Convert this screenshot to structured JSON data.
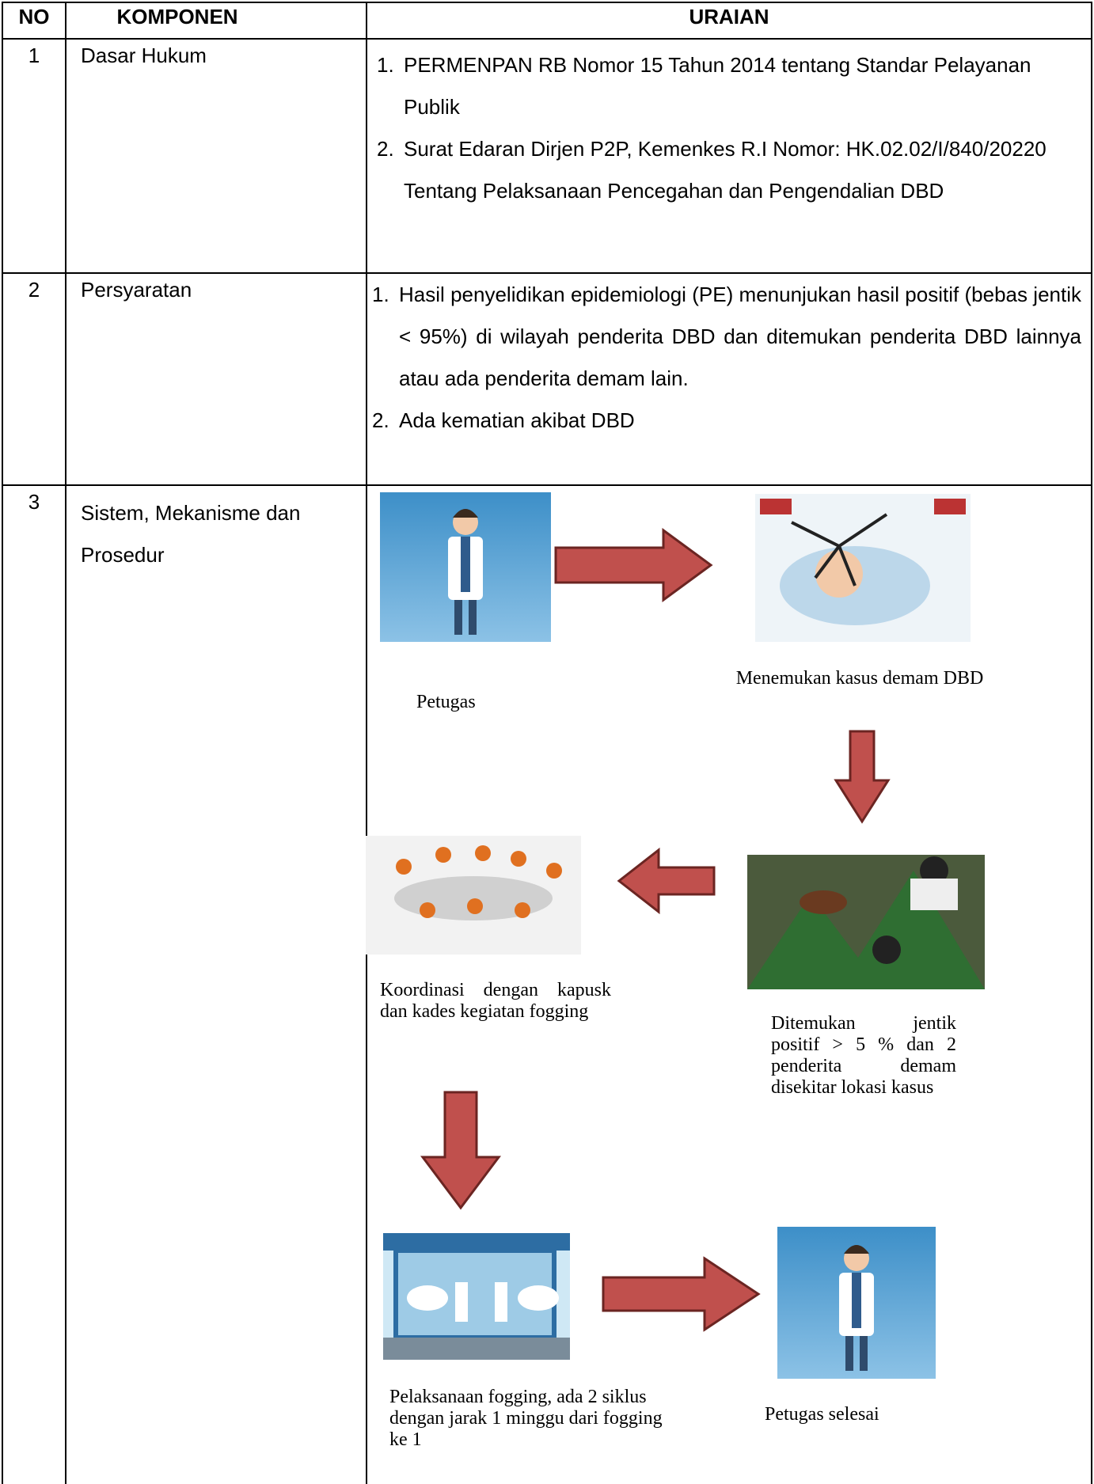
{
  "header": {
    "no": "NO",
    "komponen": "KOMPONEN",
    "uraian": "URAIAN"
  },
  "rows": [
    {
      "no": "1",
      "komponen": "Dasar Hukum",
      "uraian": [
        {
          "num": "1.",
          "text": "PERMENPAN RB Nomor 15 Tahun 2014 tentang Standar Pelayanan Publik"
        },
        {
          "num": "2.",
          "text": "Surat Edaran Dirjen P2P, Kemenkes R.I Nomor: HK.02.02/I/840/20220 Tentang Pelaksanaan Pencegahan dan Pengendalian DBD"
        }
      ]
    },
    {
      "no": "2",
      "komponen": "Persyaratan",
      "uraian": [
        {
          "num": "1.",
          "text": "Hasil penyelidikan epidemiologi (PE) menunjukan hasil positif (bebas jentik < 95%) di wilayah penderita DBD dan ditemukan penderita DBD lainnya atau ada penderita demam lain."
        },
        {
          "num": "2.",
          "text": "Ada kematian akibat DBD"
        }
      ]
    },
    {
      "no": "3",
      "komponen": "Sistem, Mekanisme dan Prosedur"
    }
  ],
  "flow": {
    "steps": [
      "Petugas",
      "Menemukan kasus demam DBD",
      "Ditemukan jentik positif > 5 % dan 2 penderita demam disekitar lokasi kasus",
      "Koordinasi dengan kapusk dan kades kegiatan fogging",
      "Pelaksanaan fogging, ada 2 siklus dengan jarak 1 minggu dari fogging ke 1",
      "Petugas selesai"
    ]
  }
}
